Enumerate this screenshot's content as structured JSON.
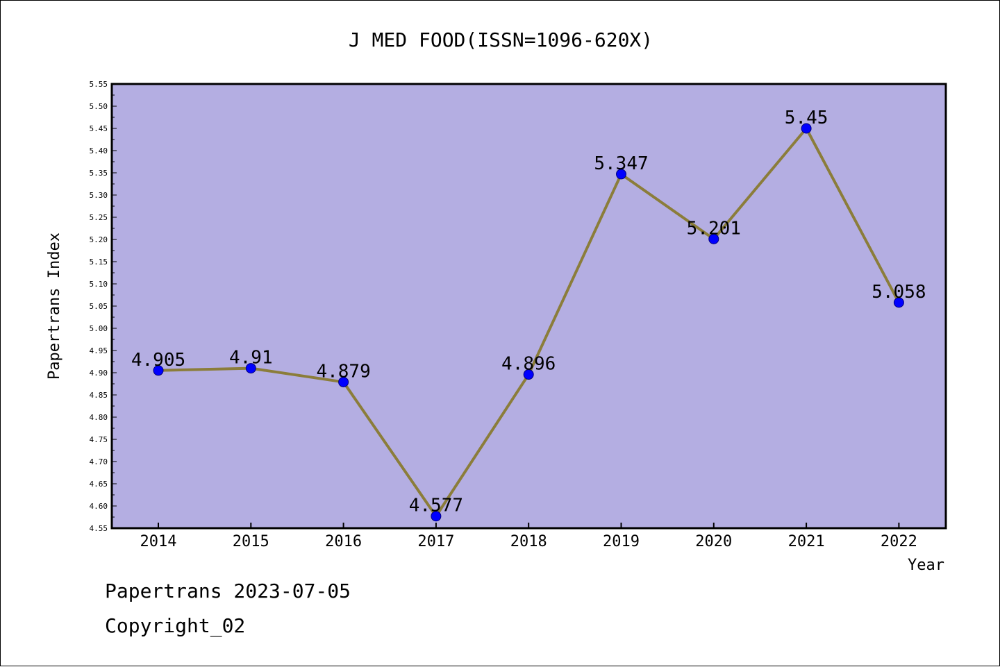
{
  "chart_data": {
    "type": "line",
    "title": "J MED FOOD(ISSN=1096-620X)",
    "xlabel": "Year",
    "ylabel": "Papertrans Index",
    "x": [
      "2014",
      "2015",
      "2016",
      "2017",
      "2018",
      "2019",
      "2020",
      "2021",
      "2022"
    ],
    "series": [
      {
        "values": [
          4.905,
          4.91,
          4.879,
          4.577,
          4.896,
          5.347,
          5.201,
          5.45,
          5.058
        ],
        "labels": [
          "4.905",
          "4.91",
          "4.879",
          "4.577",
          "4.896",
          "5.347",
          "5.201",
          "5.45",
          "5.058"
        ]
      }
    ],
    "ylim": [
      4.55,
      5.55
    ],
    "y_ticks": [
      "4.55",
      "4.60",
      "4.65",
      "4.70",
      "4.75",
      "4.80",
      "4.85",
      "4.90",
      "4.95",
      "5.00",
      "5.05",
      "5.10",
      "5.15",
      "5.20",
      "5.25",
      "5.30",
      "5.35",
      "5.40",
      "5.45",
      "5.50",
      "5.55"
    ],
    "grid": false,
    "legend": "none",
    "colors": {
      "plot_background": "#b4aee2",
      "line": "#8b7d3a",
      "marker": "#0000ff",
      "axis": "#000000"
    }
  },
  "footer": {
    "line1": "Papertrans 2023-07-05",
    "line2": "Copyright_02"
  }
}
